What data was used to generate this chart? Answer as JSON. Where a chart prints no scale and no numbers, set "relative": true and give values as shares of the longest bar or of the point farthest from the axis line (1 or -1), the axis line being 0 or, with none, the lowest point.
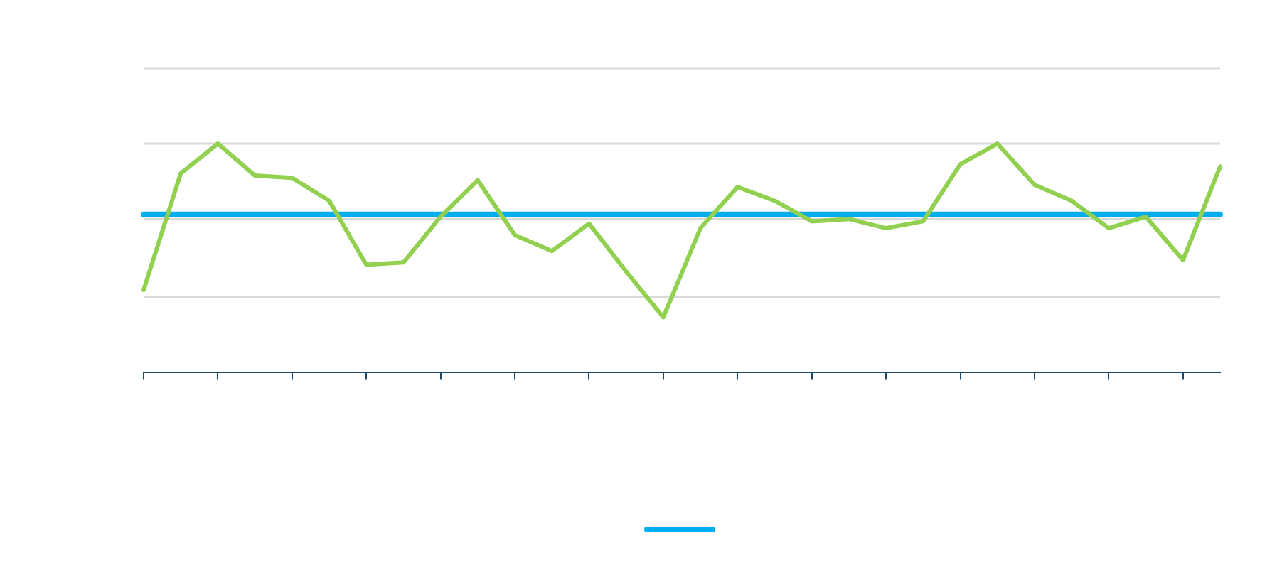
{
  "chart_data": {
    "type": "line",
    "relative": true,
    "ref_lines": [
      {
        "axis": "y",
        "value": 0.33,
        "color": "#d9d9d9"
      },
      {
        "axis": "y",
        "value": 0.67,
        "color": "#d9d9d9"
      },
      {
        "axis": "y",
        "value": 1.0,
        "color": "#d9d9d9"
      },
      {
        "axis": "y",
        "value": 1.33,
        "color": "#d9d9d9"
      }
    ],
    "categories": [
      null,
      null,
      null,
      null,
      null,
      null,
      null,
      null,
      null,
      null,
      null,
      null,
      null,
      null,
      null,
      null,
      null,
      null,
      null,
      null,
      null,
      null,
      null,
      null,
      null,
      null,
      null,
      null,
      null,
      null
    ],
    "series": [
      {
        "color": "#00aeef",
        "values": [
          0.69,
          0.69,
          0.69,
          0.69,
          0.69,
          0.69,
          0.69,
          0.69,
          0.69,
          0.69,
          0.69,
          0.69,
          0.69,
          0.69,
          0.69,
          0.69,
          0.69,
          0.69,
          0.69,
          0.69,
          0.69,
          0.69,
          0.69,
          0.69,
          0.69,
          0.69,
          0.69,
          0.69,
          0.69,
          0.69
        ]
      },
      {
        "color": "#92d050",
        "values": [
          0.36,
          0.87,
          1.0,
          0.86,
          0.85,
          0.75,
          0.47,
          0.48,
          0.68,
          0.84,
          0.6,
          0.53,
          0.65,
          0.44,
          0.24,
          0.63,
          0.81,
          0.75,
          0.66,
          0.67,
          0.63,
          0.66,
          0.91,
          1.0,
          0.82,
          0.75,
          0.63,
          0.68,
          0.49,
          0.9
        ]
      }
    ]
  }
}
